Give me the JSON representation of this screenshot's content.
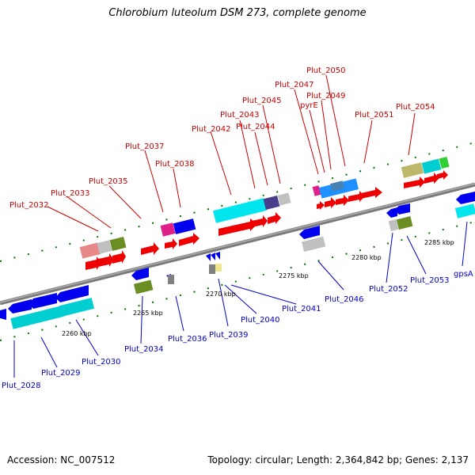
{
  "title": "Chlorobium luteolum DSM 273, complete genome",
  "footer": {
    "accession": "Accession: NC_007512",
    "stats": "Topology: circular; Length: 2,364,842 bp; Genes: 2,137"
  },
  "colors": {
    "forward_label": "#cc0000",
    "reverse_label": "#0000cc",
    "forward_gene": "#ff0000",
    "reverse_gene": "#0000ff",
    "backbone": "#808080",
    "tick": "#007700"
  },
  "scale_labels": [
    "2260 kbp",
    "2265 kbp",
    "2270 kbp",
    "2275 kbp",
    "2280 kbp",
    "2285 kbp"
  ],
  "forward_genes": [
    "Plut_2032",
    "Plut_2033",
    "Plut_2035",
    "Plut_2037",
    "Plut_2038",
    "Plut_2042",
    "Plut_2043",
    "Plut_2044",
    "Plut_2045",
    "Plut_2047",
    "pyrE",
    "Plut_2049",
    "Plut_2050",
    "Plut_2051",
    "Plut_2054"
  ],
  "reverse_genes": [
    "Plut_2028",
    "Plut_2029",
    "Plut_2030",
    "Plut_2034",
    "Plut_2036",
    "Plut_2039",
    "Plut_2040",
    "Plut_2041",
    "Plut_2046",
    "Plut_2052",
    "Plut_2053",
    "gpsA"
  ]
}
